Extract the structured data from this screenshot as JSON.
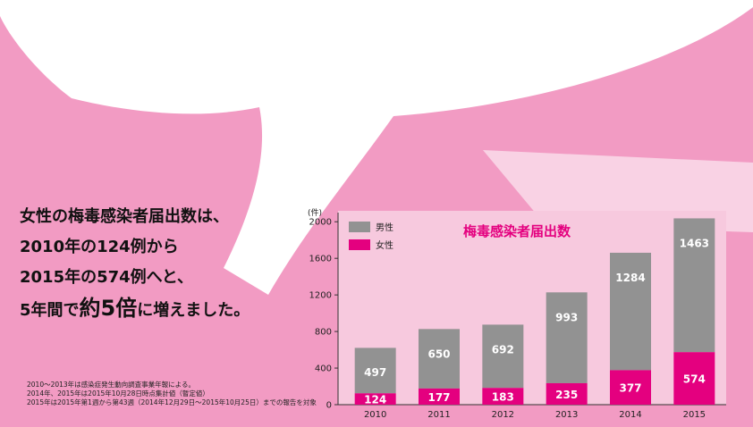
{
  "headline": {
    "line1": "女性の梅毒感染者届出数は、",
    "line2": "2010年の124例から",
    "line3": "2015年の574例へと、",
    "line4_pre": "5年間で",
    "line4_big1": "約",
    "line4_big2": "5倍",
    "line4_post": "に増えました。"
  },
  "notes": [
    "2010〜2013年は感染症発生動向調査事業年報による。",
    "2014年、2015年は2015年10月28日時点集計値（暫定値）",
    "2015年は2015年第1週から第43週（2014年12月29日〜2015年10月25日）までの報告を対象"
  ],
  "colors": {
    "background": "#f29bc3",
    "white_shape": "#ffffff",
    "plot_panel": "#f7c9de",
    "male": "#929292",
    "female": "#e4007f",
    "title": "#e4007f"
  },
  "chart_data": {
    "type": "bar",
    "stacked": true,
    "title": "梅毒感染者届出数",
    "ylabel": "(件)",
    "xlabel": "",
    "categories": [
      "2010",
      "2011",
      "2012",
      "2013",
      "2014",
      "2015"
    ],
    "series": [
      {
        "name": "女性",
        "color": "#e4007f",
        "values": [
          124,
          177,
          183,
          235,
          377,
          574
        ]
      },
      {
        "name": "男性",
        "color": "#929292",
        "values": [
          497,
          650,
          692,
          993,
          1284,
          1463
        ]
      }
    ],
    "ylim": [
      0,
      2100
    ],
    "yticks": [
      0,
      400,
      800,
      1200,
      1600,
      2000
    ],
    "legend": {
      "placement": "top-left",
      "items": [
        "男性",
        "女性"
      ]
    },
    "data_labels": true,
    "grid": false
  }
}
